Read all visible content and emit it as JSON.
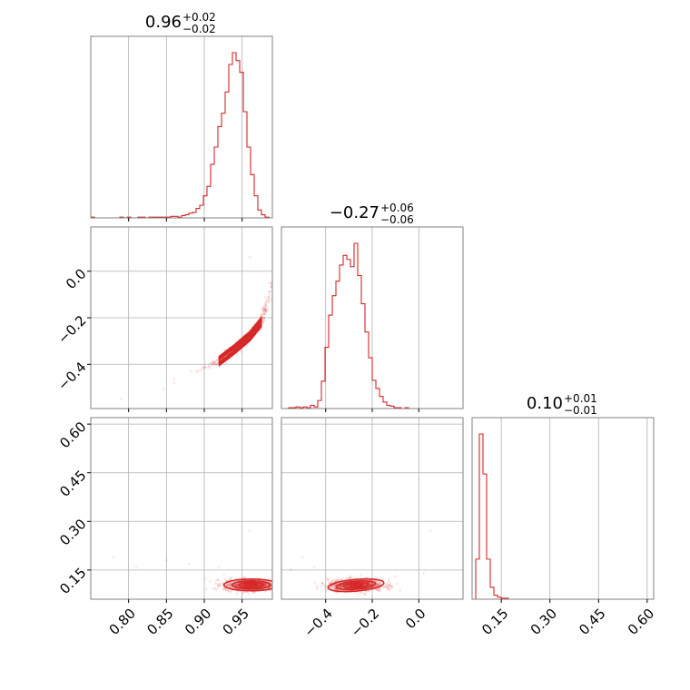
{
  "colors": {
    "series": "#d62728",
    "grid": "#b0b0b0",
    "frame": "#808080"
  },
  "chart_data": {
    "type": "corner",
    "grid": true,
    "parameters": [
      {
        "title": {
          "median": "0.96",
          "plus": "+0.02",
          "minus": "−0.02"
        },
        "range": [
          0.75,
          0.99
        ],
        "ticks": [
          0.8,
          0.85,
          0.9,
          0.95
        ],
        "tick_labels": [
          "0.80",
          "0.85",
          "0.90",
          "0.95"
        ]
      },
      {
        "title": {
          "median": "−0.27",
          "plus": "+0.06",
          "minus": "−0.06"
        },
        "range": [
          -0.59,
          0.19
        ],
        "ticks": [
          -0.4,
          -0.2,
          0.0
        ],
        "tick_labels": [
          "−0.4",
          "−0.2",
          "0.0"
        ]
      },
      {
        "title": {
          "median": "0.10",
          "plus": "+0.01",
          "minus": "−0.01"
        },
        "range": [
          0.06,
          0.62
        ],
        "ticks": [
          0.15,
          0.3,
          0.45,
          0.6
        ],
        "tick_labels": [
          "0.15",
          "0.30",
          "0.45",
          "0.60"
        ]
      }
    ],
    "histograms": [
      {
        "param": 0,
        "bin_edges_range": [
          0.75,
          0.99
        ],
        "bins": 50,
        "counts": [
          1,
          0,
          0,
          0,
          0,
          0,
          0,
          0,
          1,
          0,
          1,
          0,
          0,
          1,
          1,
          0,
          1,
          1,
          1,
          1,
          1,
          1,
          2,
          2,
          1,
          3,
          4,
          6,
          7,
          12,
          16,
          28,
          40,
          68,
          90,
          116,
          133,
          160,
          195,
          210,
          200,
          185,
          135,
          90,
          55,
          28,
          10,
          4,
          1,
          0
        ]
      },
      {
        "param": 1,
        "bin_edges_range": [
          -0.59,
          0.19
        ],
        "bins": 50,
        "counts": [
          0,
          0,
          1,
          1,
          2,
          1,
          2,
          1,
          4,
          2,
          10,
          34,
          76,
          116,
          140,
          158,
          178,
          190,
          185,
          176,
          205,
          165,
          130,
          95,
          63,
          35,
          25,
          15,
          8,
          4,
          3,
          1,
          1,
          0,
          1,
          0,
          0,
          0,
          0,
          0,
          0,
          0,
          0,
          0,
          0,
          0,
          0,
          0,
          0,
          0
        ]
      },
      {
        "param": 2,
        "bin_edges_range": [
          0.06,
          0.62
        ],
        "bins": 50,
        "counts": [
          0,
          40,
          165,
          125,
          40,
          12,
          4,
          2,
          1,
          1,
          0,
          0,
          0,
          0,
          0,
          0,
          0,
          0,
          0,
          0,
          0,
          0,
          0,
          0,
          0,
          0,
          0,
          0,
          0,
          0,
          0,
          0,
          0,
          0,
          0,
          0,
          0,
          0,
          0,
          0,
          0,
          0,
          0,
          0,
          0,
          0,
          0,
          0,
          0,
          0
        ]
      }
    ],
    "pairs": [
      {
        "x_param": 0,
        "y_param": 1,
        "correlation": "strong positive",
        "center": [
          0.96,
          -0.27
        ],
        "trend_points": [
          [
            0.84,
            -0.51
          ],
          [
            0.89,
            -0.43
          ],
          [
            0.92,
            -0.385
          ],
          [
            0.94,
            -0.335
          ],
          [
            0.96,
            -0.28
          ],
          [
            0.975,
            -0.22
          ],
          [
            0.99,
            -0.06
          ]
        ],
        "outliers": [
          [
            0.96,
            0.06
          ],
          [
            0.79,
            -0.55
          ],
          [
            0.86,
            -0.48
          ]
        ]
      },
      {
        "x_param": 0,
        "y_param": 2,
        "center": [
          0.962,
          0.104
        ],
        "spread": [
          0.018,
          0.009
        ],
        "rotation_deg": 0,
        "outliers": [
          [
            0.78,
            0.19
          ],
          [
            0.85,
            0.18
          ],
          [
            0.96,
            0.27
          ],
          [
            0.81,
            0.16
          ],
          [
            0.88,
            0.17
          ],
          [
            0.92,
            0.16
          ]
        ]
      },
      {
        "x_param": 1,
        "y_param": 2,
        "center": [
          -0.27,
          0.103
        ],
        "spread": [
          0.06,
          0.009
        ],
        "rotation_deg": -5,
        "outliers": [
          [
            -0.55,
            0.15
          ],
          [
            -0.5,
            0.19
          ],
          [
            0.05,
            0.27
          ],
          [
            0.02,
            0.14
          ],
          [
            -0.45,
            0.16
          ],
          [
            -0.1,
            0.13
          ]
        ]
      }
    ]
  }
}
